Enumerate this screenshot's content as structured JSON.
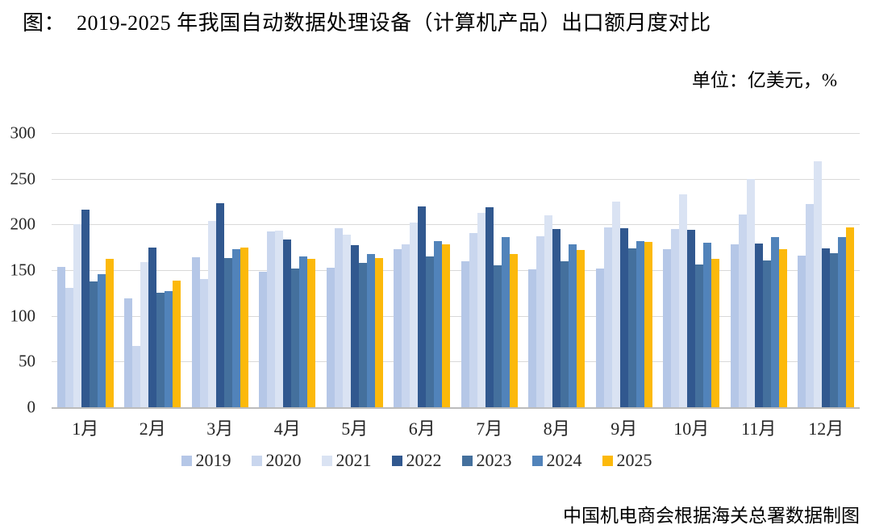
{
  "title": "图：  2019-2025 年我国自动数据处理设备（计算机产品）出口额月度对比",
  "unit_label": "单位：亿美元，%",
  "source": "中国机电商会根据海关总署数据制图",
  "chart_data": {
    "type": "bar",
    "title": "2019-2025 年我国自动数据处理设备（计算机产品）出口额月度对比",
    "xlabel": "",
    "ylabel": "亿美元",
    "ylim": [
      0,
      300
    ],
    "yticks": [
      0,
      50,
      100,
      150,
      200,
      250,
      300
    ],
    "grid": true,
    "legend_position": "bottom",
    "categories": [
      "1月",
      "2月",
      "3月",
      "4月",
      "5月",
      "6月",
      "7月",
      "8月",
      "9月",
      "10月",
      "11月",
      "12月"
    ],
    "series": [
      {
        "name": "2019",
        "color": "#b5c7e7",
        "values": [
          154,
          119,
          164,
          148,
          153,
          173,
          160,
          151,
          152,
          173,
          178,
          166
        ]
      },
      {
        "name": "2020",
        "color": "#c9d6ee",
        "values": [
          131,
          67,
          140,
          192,
          196,
          178,
          191,
          187,
          197,
          195,
          211,
          222
        ]
      },
      {
        "name": "2021",
        "color": "#dae3f3",
        "values": [
          200,
          159,
          204,
          193,
          189,
          202,
          213,
          210,
          225,
          233,
          250,
          269
        ]
      },
      {
        "name": "2022",
        "color": "#31588f",
        "values": [
          216,
          175,
          223,
          184,
          177,
          220,
          219,
          195,
          196,
          194,
          179,
          174
        ]
      },
      {
        "name": "2023",
        "color": "#44709d",
        "values": [
          138,
          125,
          163,
          152,
          158,
          165,
          155,
          160,
          174,
          156,
          161,
          169
        ]
      },
      {
        "name": "2024",
        "color": "#5183ba",
        "values": [
          146,
          127,
          173,
          165,
          168,
          182,
          186,
          178,
          182,
          180,
          186,
          186
        ]
      },
      {
        "name": "2025",
        "color": "#fcb90b",
        "values": [
          162,
          139,
          175,
          162,
          163,
          178,
          168,
          172,
          181,
          162,
          173,
          197
        ]
      }
    ]
  }
}
